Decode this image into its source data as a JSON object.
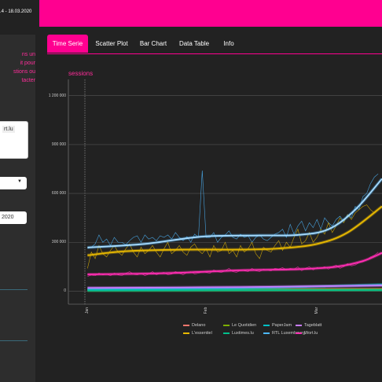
{
  "header": {
    "date_range": ".4 - 18.03.2020",
    "brand_color": "#ff0090"
  },
  "sidebar": {
    "description_lines": [
      "ns un",
      "it pour",
      "stions ou",
      "tacter"
    ],
    "text_value": "rt.lu",
    "select_icon": "caret-down-icon",
    "date_value": "2020"
  },
  "tabs": [
    {
      "label": "Time Serie",
      "active": true
    },
    {
      "label": "Scatter Plot",
      "active": false
    },
    {
      "label": "Bar Chart",
      "active": false
    },
    {
      "label": "Data Table",
      "active": false
    },
    {
      "label": "Info",
      "active": false
    }
  ],
  "chart_data": {
    "type": "line",
    "ylabel": "sessions",
    "xlabel": "",
    "ylim": [
      -80000,
      1300000
    ],
    "y_ticks": [
      "0",
      "300 000",
      "600 000",
      "900 000",
      "1 200 000"
    ],
    "y_tick_values": [
      0,
      300000,
      600000,
      900000,
      1200000
    ],
    "x_ticks": [
      "Jan",
      "Feb",
      "Mar"
    ],
    "x_tick_days": [
      0,
      31,
      60
    ],
    "x_range_days": [
      -5,
      77
    ],
    "grid": true,
    "legend_position": "bottom",
    "series": [
      {
        "name": "Delano",
        "color": "#f8766d",
        "smooth": [
          [
            0,
            8000
          ],
          [
            77,
            12000
          ]
        ]
      },
      {
        "name": "L'essentiel",
        "color": "#e7b800",
        "smooth": [
          [
            0,
            220000
          ],
          [
            10,
            245000
          ],
          [
            25,
            255000
          ],
          [
            40,
            255000
          ],
          [
            50,
            262000
          ],
          [
            60,
            290000
          ],
          [
            68,
            360000
          ],
          [
            77,
            520000
          ]
        ]
      },
      {
        "name": "Le Quotidien",
        "color": "#7cae00",
        "smooth": [
          [
            0,
            5000
          ],
          [
            77,
            9000
          ]
        ]
      },
      {
        "name": "Luxtimes.lu",
        "color": "#00c08b",
        "smooth": [
          [
            0,
            4000
          ],
          [
            77,
            7000
          ]
        ]
      },
      {
        "name": "PaperJam",
        "color": "#00bfc4",
        "smooth": [
          [
            0,
            12000
          ],
          [
            40,
            18000
          ],
          [
            77,
            40000
          ]
        ]
      },
      {
        "name": "RTL Luxembourg",
        "color": "#4db8ff",
        "smooth": [
          [
            0,
            268000
          ],
          [
            15,
            290000
          ],
          [
            30,
            335000
          ],
          [
            45,
            342000
          ],
          [
            55,
            345000
          ],
          [
            63,
            380000
          ],
          [
            70,
            500000
          ],
          [
            77,
            690000
          ]
        ]
      },
      {
        "name": "Tageblatt",
        "color": "#c77cff",
        "smooth": [
          [
            0,
            20000
          ],
          [
            40,
            25000
          ],
          [
            77,
            35000
          ]
        ]
      },
      {
        "name": "Wort.lu",
        "color": "#ff2db2",
        "smooth": [
          [
            0,
            103000
          ],
          [
            20,
            110000
          ],
          [
            40,
            128000
          ],
          [
            55,
            135000
          ],
          [
            65,
            150000
          ],
          [
            72,
            185000
          ],
          [
            77,
            235000
          ]
        ]
      }
    ],
    "raw": [
      {
        "color": "#4db8ff",
        "values": [
          262000,
          270000,
          290000,
          345000,
          300000,
          320000,
          280000,
          330000,
          300000,
          300000,
          285000,
          310000,
          330000,
          340000,
          300000,
          345000,
          320000,
          330000,
          310000,
          340000,
          330000,
          345000,
          320000,
          360000,
          330000,
          310000,
          335000,
          300000,
          350000,
          330000,
          740000,
          330000,
          330000,
          360000,
          300000,
          330000,
          345000,
          370000,
          330000,
          320000,
          350000,
          330000,
          340000,
          300000,
          330000,
          345000,
          320000,
          310000,
          330000,
          350000,
          360000,
          380000,
          330000,
          410000,
          350000,
          400000,
          430000,
          370000,
          420000,
          390000,
          440000,
          380000,
          450000,
          420000,
          400000,
          440000,
          460000,
          430000,
          470000,
          450000,
          520000,
          500000,
          580000,
          600000,
          660000,
          700000,
          720000
        ]
      },
      {
        "color": "#e7b800",
        "values": [
          140000,
          240000,
          200000,
          280000,
          230000,
          210000,
          250000,
          280000,
          240000,
          220000,
          260000,
          290000,
          240000,
          210000,
          270000,
          230000,
          250000,
          280000,
          240000,
          210000,
          260000,
          300000,
          230000,
          250000,
          280000,
          240000,
          220000,
          270000,
          290000,
          250000,
          230000,
          260000,
          210000,
          280000,
          240000,
          250000,
          300000,
          230000,
          250000,
          210000,
          280000,
          240000,
          260000,
          300000,
          230000,
          200000,
          270000,
          250000,
          240000,
          280000,
          310000,
          250000,
          300000,
          270000,
          330000,
          380000,
          290000,
          310000,
          360000,
          300000,
          330000,
          380000,
          350000,
          420000,
          360000,
          400000,
          450000,
          420000,
          470000,
          440000,
          480000,
          500000,
          520000,
          530000,
          500000,
          480000,
          500000
        ]
      },
      {
        "color": "#ff2db2",
        "values": [
          90000,
          100000,
          95000,
          110000,
          100000,
          105000,
          95000,
          110000,
          100000,
          95000,
          110000,
          120000,
          105000,
          100000,
          110000,
          95000,
          105000,
          120000,
          100000,
          110000,
          115000,
          100000,
          105000,
          120000,
          110000,
          100000,
          115000,
          120000,
          105000,
          110000,
          120000,
          115000,
          110000,
          130000,
          120000,
          115000,
          125000,
          140000,
          120000,
          115000,
          130000,
          125000,
          120000,
          140000,
          125000,
          120000,
          135000,
          130000,
          125000,
          140000,
          135000,
          145000,
          130000,
          140000,
          135000,
          150000,
          125000,
          140000,
          150000,
          130000,
          145000,
          140000,
          150000,
          135000,
          150000,
          160000,
          140000,
          150000,
          170000,
          155000,
          160000,
          175000,
          180000,
          190000,
          210000,
          220000,
          240000
        ]
      },
      {
        "color": "#00bfc4",
        "values": [
          15000,
          18000,
          12000,
          20000,
          14000,
          16000,
          18000,
          15000,
          20000,
          14000,
          18000,
          16000,
          15000,
          20000,
          17000,
          14000,
          19000,
          16000,
          15000,
          18000,
          20000,
          16000,
          15000,
          19000,
          17000,
          16000,
          18000,
          15000,
          20000,
          17000,
          18000,
          16000,
          15000,
          19000,
          17000,
          18000,
          16000,
          20000,
          18000,
          17000,
          19000,
          18000,
          20000,
          17000,
          19000,
          18000,
          21000,
          20000,
          19000,
          22000,
          20000,
          21000,
          23000,
          22000,
          24000,
          23000,
          25000,
          24000,
          26000,
          25000,
          28000,
          27000,
          26000,
          30000,
          28000,
          29000,
          31000,
          30000,
          32000,
          31000,
          34000,
          35000,
          37000,
          38000,
          40000,
          41000,
          42000
        ]
      }
    ]
  },
  "legend": [
    {
      "name": "Delano",
      "color": "#f8766d"
    },
    {
      "name": "L'essentiel",
      "color": "#e7b800"
    },
    {
      "name": "Le Quotidien",
      "color": "#7cae00"
    },
    {
      "name": "Luxtimes.lu",
      "color": "#00c08b"
    },
    {
      "name": "PaperJam",
      "color": "#00bfc4"
    },
    {
      "name": "RTL Luxembourg",
      "color": "#4db8ff"
    },
    {
      "name": "Tageblatt",
      "color": "#c77cff"
    },
    {
      "name": "Wort.lu",
      "color": "#ff2db2"
    }
  ]
}
